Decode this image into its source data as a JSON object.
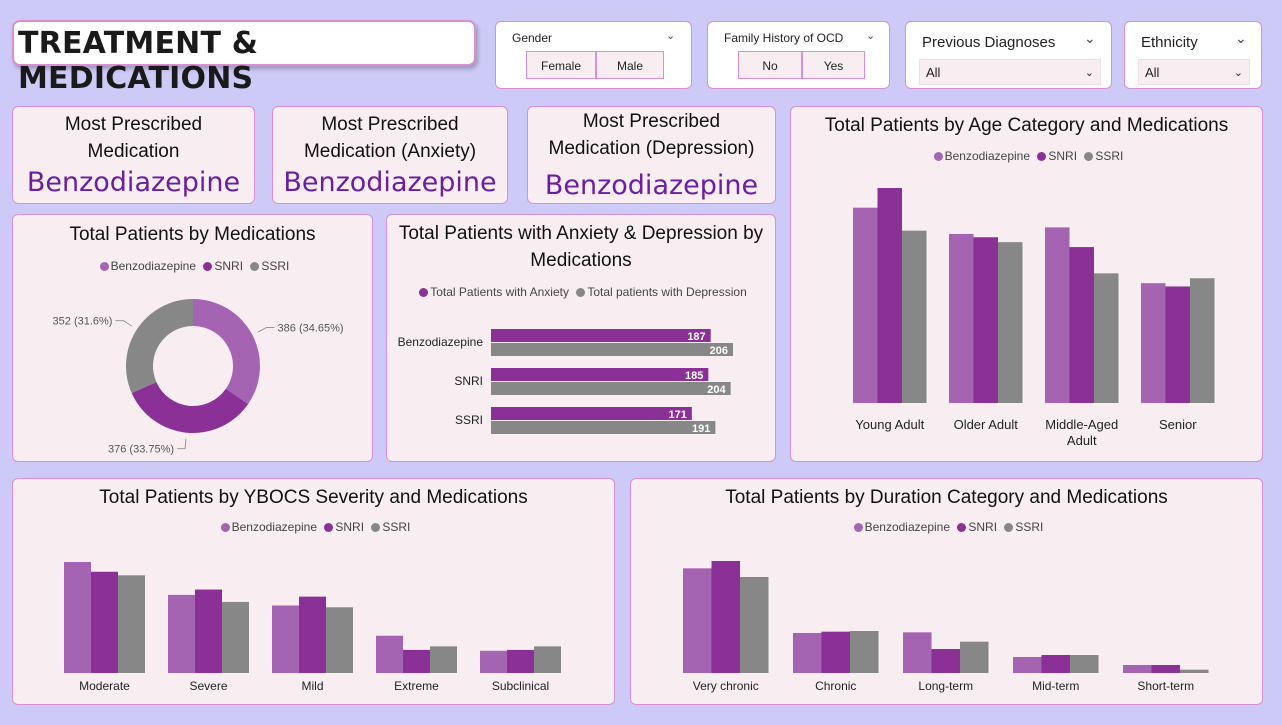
{
  "page_title": "TREATMENT & MEDICATIONS",
  "colors": {
    "benzo": "#a464b2",
    "snri": "#8a3096",
    "ssri": "#878787",
    "accent": "#6a1fa0"
  },
  "filters": {
    "gender": {
      "label": "Gender",
      "options": [
        "Female",
        "Male"
      ]
    },
    "family": {
      "label": "Family History of OCD",
      "options": [
        "No",
        "Yes"
      ]
    },
    "prev": {
      "label": "Previous Diagnoses",
      "value": "All"
    },
    "eth": {
      "label": "Ethnicity",
      "value": "All"
    }
  },
  "kpis": [
    {
      "title": "Most Prescribed Medication",
      "value": "Benzodiazepine"
    },
    {
      "title": "Most Prescribed Medication (Anxiety)",
      "value": "Benzodiazepine"
    },
    {
      "title": "Most Prescribed Medication (Depression)",
      "value": "Benzodiazepine"
    }
  ],
  "legend_meds": [
    "Benzodiazepine",
    "SNRI",
    "SSRI"
  ],
  "chart_data": [
    {
      "id": "donut",
      "type": "pie",
      "title": "Total Patients by Medications",
      "categories": [
        "Benzodiazepine",
        "SNRI",
        "SSRI"
      ],
      "values": [
        386,
        376,
        352
      ],
      "labels": [
        "386 (34.65%)",
        "376 (33.75%)",
        "352 (31.6%)"
      ]
    },
    {
      "id": "anxdep",
      "type": "bar",
      "orientation": "horizontal",
      "title": "Total Patients with Anxiety & Depression by Medications",
      "categories": [
        "Benzodiazepine",
        "SNRI",
        "SSRI"
      ],
      "series": [
        {
          "name": "Total Patients with Anxiety",
          "values": [
            187,
            185,
            171
          ]
        },
        {
          "name": "Total patients with Depression",
          "values": [
            206,
            204,
            191
          ]
        }
      ],
      "xlim": [
        0,
        206
      ]
    },
    {
      "id": "age",
      "type": "bar",
      "title": "Total Patients by Age Category and Medications",
      "categories": [
        "Young Adult",
        "Older Adult",
        "Middle-Aged Adult",
        "Senior"
      ],
      "series": [
        {
          "name": "Benzodiazepine",
          "values": [
            119,
            103,
            107,
            73
          ]
        },
        {
          "name": "SNRI",
          "values": [
            131,
            101,
            95,
            71
          ]
        },
        {
          "name": "SSRI",
          "values": [
            105,
            98,
            79,
            76
          ]
        }
      ],
      "ylim": [
        0,
        131
      ]
    },
    {
      "id": "ybocs",
      "type": "bar",
      "title": "Total Patients by YBOCS Severity and Medications",
      "categories": [
        "Moderate",
        "Severe",
        "Mild",
        "Extreme",
        "Subclinical"
      ],
      "series": [
        {
          "name": "Benzodiazepine",
          "values": [
            125,
            88,
            76,
            42,
            25
          ]
        },
        {
          "name": "SNRI",
          "values": [
            114,
            94,
            86,
            26,
            26
          ]
        },
        {
          "name": "SSRI",
          "values": [
            110,
            80,
            74,
            30,
            30
          ]
        }
      ],
      "ylim": [
        0,
        125
      ]
    },
    {
      "id": "duration",
      "type": "bar",
      "title": "Total Patients by Duration Category and Medications",
      "categories": [
        "Very chronic",
        "Chronic",
        "Long-term",
        "Mid-term",
        "Short-term"
      ],
      "series": [
        {
          "name": "Benzodiazepine",
          "values": [
            157,
            60,
            61,
            24,
            12
          ]
        },
        {
          "name": "SNRI",
          "values": [
            168,
            62,
            36,
            27,
            12
          ]
        },
        {
          "name": "SSRI",
          "values": [
            144,
            63,
            47,
            27,
            5
          ]
        }
      ],
      "ylim": [
        0,
        168
      ]
    }
  ]
}
